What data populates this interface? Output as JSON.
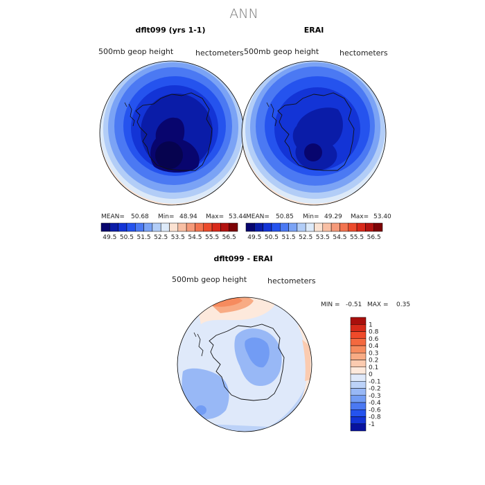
{
  "figure": {
    "season": "ANN"
  },
  "panels": [
    {
      "title": "dflt099 (yrs 1-1)",
      "variable": "500mb geop height",
      "units": "hectometers",
      "stats": {
        "mean_label": "MEAN=",
        "mean": "50.68",
        "min_label": "Min=",
        "min": "48.94",
        "max_label": "Max=",
        "max": "53.44"
      }
    },
    {
      "title": "ERAI",
      "variable": "500mb geop height",
      "units": "hectometers",
      "stats": {
        "mean_label": "MEAN=",
        "mean": "50.85",
        "min_label": "Min=",
        "min": "49.29",
        "max_label": "Max=",
        "max": "53.40"
      }
    }
  ],
  "abs_colorbar": {
    "labels": [
      "49.5",
      "50.5",
      "51.5",
      "52.5",
      "53.5",
      "54.5",
      "55.5",
      "56.5"
    ],
    "colors": [
      "#08056e",
      "#0a1ca8",
      "#1334d6",
      "#2553ee",
      "#4b79f3",
      "#7ba3f5",
      "#b2cdf7",
      "#ddeaf9",
      "#fbe2d2",
      "#f8bfa4",
      "#f59a7a",
      "#f27450",
      "#ec4b2c",
      "#d9291a",
      "#b31310",
      "#7d0306"
    ]
  },
  "diff_panel": {
    "title": "dflt099 - ERAI",
    "variable": "500mb geop height",
    "units": "hectometers",
    "min_label": "MIN =",
    "min": "-0.51",
    "max_label": "MAX =",
    "max": "0.35"
  },
  "diff_colorbar": {
    "labels": [
      "1",
      "0.8",
      "0.6",
      "0.4",
      "0.3",
      "0.2",
      "0.1",
      "0",
      "-0.1",
      "-0.2",
      "-0.3",
      "-0.4",
      "-0.6",
      "-0.8",
      "-1"
    ],
    "colors": [
      "#a90f0c",
      "#d62a19",
      "#ef4a2a",
      "#f4693f",
      "#f68b5e",
      "#f8ab84",
      "#fbcbb0",
      "#fde9dc",
      "#dfe9fa",
      "#bcd2f8",
      "#98b8f6",
      "#729cf4",
      "#4b79f2",
      "#2553ee",
      "#1334d6",
      "#08129e"
    ]
  }
}
